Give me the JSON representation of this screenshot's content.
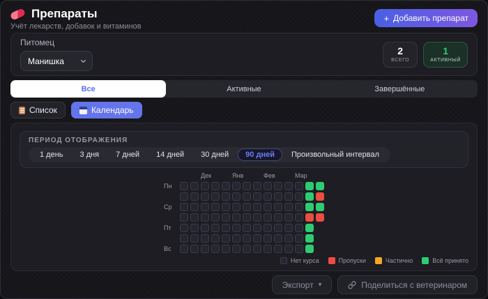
{
  "icons": {
    "plus": "+",
    "caret_down": "▾"
  },
  "header": {
    "title": "Препараты",
    "subtitle": "Учёт лекарств, добавок и витаминов",
    "add_button_label": "Добавить препарат"
  },
  "pet": {
    "label": "Питомец",
    "selected_option": "Манишка"
  },
  "stats": [
    {
      "value": "2",
      "label": "ВСЕГО"
    },
    {
      "value": "1",
      "label": "АКТИВНЫЙ"
    }
  ],
  "tabs": [
    {
      "label": "Все",
      "active": true
    },
    {
      "label": "Активные",
      "active": false
    },
    {
      "label": "Завершённые",
      "active": false
    }
  ],
  "view_toggle": [
    {
      "label": "Список",
      "icon": "list-icon",
      "active": false
    },
    {
      "label": "Календарь",
      "icon": "calendar-icon",
      "active": true
    }
  ],
  "period": {
    "title": "ПЕРИОД ОТОБРАЖЕНИЯ",
    "options": [
      "1 день",
      "3 дня",
      "7 дней",
      "14 дней",
      "30 дней",
      "90 дней",
      "Произвольный интервал"
    ],
    "selected": "90 дней"
  },
  "calendar": {
    "months": [
      {
        "label": "Дек",
        "col": 3
      },
      {
        "label": "Янв",
        "col": 6
      },
      {
        "label": "Фев",
        "col": 9
      },
      {
        "label": "Мар",
        "col": 12
      }
    ],
    "rows": [
      {
        "day_label": "Пн",
        "cells": "............GG"
      },
      {
        "day_label": "",
        "cells": "............GR"
      },
      {
        "day_label": "Ср",
        "cells": "............GG"
      },
      {
        "day_label": "",
        "cells": "............RR"
      },
      {
        "day_label": "Пт",
        "cells": "............G"
      },
      {
        "day_label": "",
        "cells": "............G"
      },
      {
        "day_label": "Вс",
        "cells": "............G"
      }
    ],
    "cell_states": {
      ".": "none",
      "G": "taken",
      "R": "missed"
    }
  },
  "legend": [
    {
      "label": "Нет курса",
      "color": "#262631",
      "border": "#3b3b4c"
    },
    {
      "label": "Пропуски",
      "color": "#ed4c42",
      "border": ""
    },
    {
      "label": "Частично",
      "color": "#f5a623",
      "border": ""
    },
    {
      "label": "Всё принято",
      "color": "#2ecc71",
      "border": ""
    }
  ],
  "footer": {
    "export_label": "Экспорт",
    "share_label": "Поделиться с ветеринаром"
  },
  "colors": {
    "accent_blue": "#5b6cf5",
    "toggle_active": "#6474ea",
    "taken_green": "#2ecc71",
    "missed_red": "#ed4c42",
    "partial_orange": "#f5a623"
  }
}
